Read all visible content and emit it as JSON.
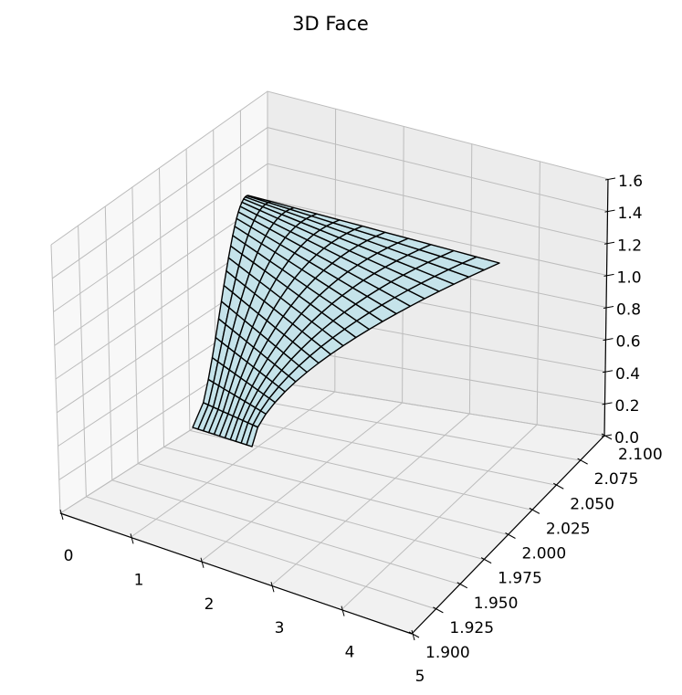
{
  "chart_data": {
    "type": "surface",
    "title": "3D Face",
    "surface": {
      "description": "Wireframe surface z = f(x, y); rows run from the near edge (z = 0) to the far edge, columns across the face width",
      "face_color": "#c5e3ea",
      "edge_color": "#000000",
      "columns": 11,
      "rows": 20,
      "z_range": [
        0,
        1.4
      ]
    },
    "axes": {
      "x": {
        "ticks": [
          0,
          1,
          2,
          3,
          4,
          5
        ],
        "tick_labels": [
          "0",
          "1",
          "2",
          "3",
          "4",
          "5"
        ],
        "range": [
          0,
          5
        ]
      },
      "y": {
        "ticks": [
          1.9,
          1.925,
          1.95,
          1.975,
          2.0,
          2.025,
          2.05,
          2.075,
          2.1
        ],
        "tick_labels": [
          "1.900",
          "1.925",
          "1.950",
          "1.975",
          "2.000",
          "2.025",
          "2.050",
          "2.075",
          "2.100"
        ],
        "range": [
          1.9,
          2.1
        ]
      },
      "z": {
        "ticks": [
          0.0,
          0.2,
          0.4,
          0.6,
          0.8,
          1.0,
          1.2,
          1.4,
          1.6
        ],
        "tick_labels": [
          "0.0",
          "0.2",
          "0.4",
          "0.6",
          "0.8",
          "1.0",
          "1.2",
          "1.4",
          "1.6"
        ],
        "range": [
          0,
          1.6
        ]
      },
      "grid": true,
      "pane_color": "#f2f2f2"
    }
  }
}
